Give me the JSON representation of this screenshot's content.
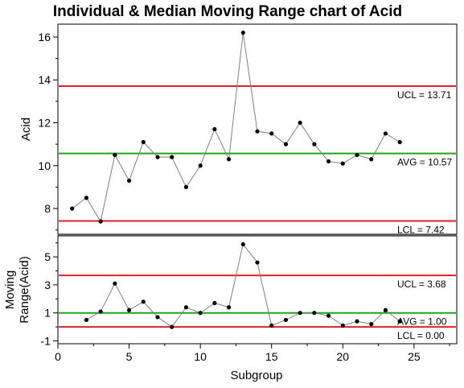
{
  "chart_data": {
    "title": "Individual & Median Moving Range chart of Acid",
    "xlabel": "Subgroup",
    "xlim": [
      0,
      28
    ],
    "xticks": [
      "0",
      "5",
      "10",
      "15",
      "20",
      "25"
    ],
    "colors": {
      "limit": "#e0202a",
      "center": "#1fa51f",
      "series": "#7f7f7f",
      "point": "#000000"
    },
    "charts": [
      {
        "type": "line",
        "ylabel": "Acid",
        "ylim": [
          6.8,
          16.6
        ],
        "yticks": [
          "8",
          "10",
          "12",
          "14",
          "16"
        ],
        "x": [
          1,
          2,
          3,
          4,
          5,
          6,
          7,
          8,
          9,
          10,
          11,
          12,
          13,
          14,
          15,
          16,
          17,
          18,
          19,
          20,
          21,
          22,
          23,
          24
        ],
        "values": [
          8.0,
          8.5,
          7.4,
          10.5,
          9.3,
          11.1,
          10.4,
          10.4,
          9.0,
          10.0,
          11.7,
          10.3,
          16.2,
          11.6,
          11.5,
          11.0,
          12.0,
          11.0,
          10.2,
          10.1,
          10.5,
          10.3,
          11.5,
          11.1
        ],
        "limits": {
          "ucl": 13.71,
          "avg": 10.57,
          "lcl": 7.42
        },
        "limit_labels": {
          "ucl": "UCL = 13.71",
          "avg": "AVG = 10.57",
          "lcl": "LCL = 7.42"
        }
      },
      {
        "type": "line",
        "ylabel_lines": [
          "Moving",
          "Range(Acid)"
        ],
        "ylim": [
          -1.2,
          6.5
        ],
        "yticks": [
          "-1",
          "1",
          "3",
          "5"
        ],
        "x": [
          2,
          3,
          4,
          5,
          6,
          7,
          8,
          9,
          10,
          11,
          12,
          13,
          14,
          15,
          16,
          17,
          18,
          19,
          20,
          21,
          22,
          23,
          24
        ],
        "values": [
          0.5,
          1.1,
          3.1,
          1.2,
          1.8,
          0.7,
          0.0,
          1.4,
          1.0,
          1.7,
          1.4,
          5.9,
          4.6,
          0.1,
          0.5,
          1.0,
          1.0,
          0.8,
          0.1,
          0.4,
          0.2,
          1.2,
          0.4
        ],
        "limits": {
          "ucl": 3.68,
          "avg": 1.0,
          "lcl": 0.0
        },
        "limit_labels": {
          "ucl": "UCL = 3.68",
          "avg": "AVG = 1.00",
          "lcl": "LCL = 0.00"
        }
      }
    ]
  }
}
